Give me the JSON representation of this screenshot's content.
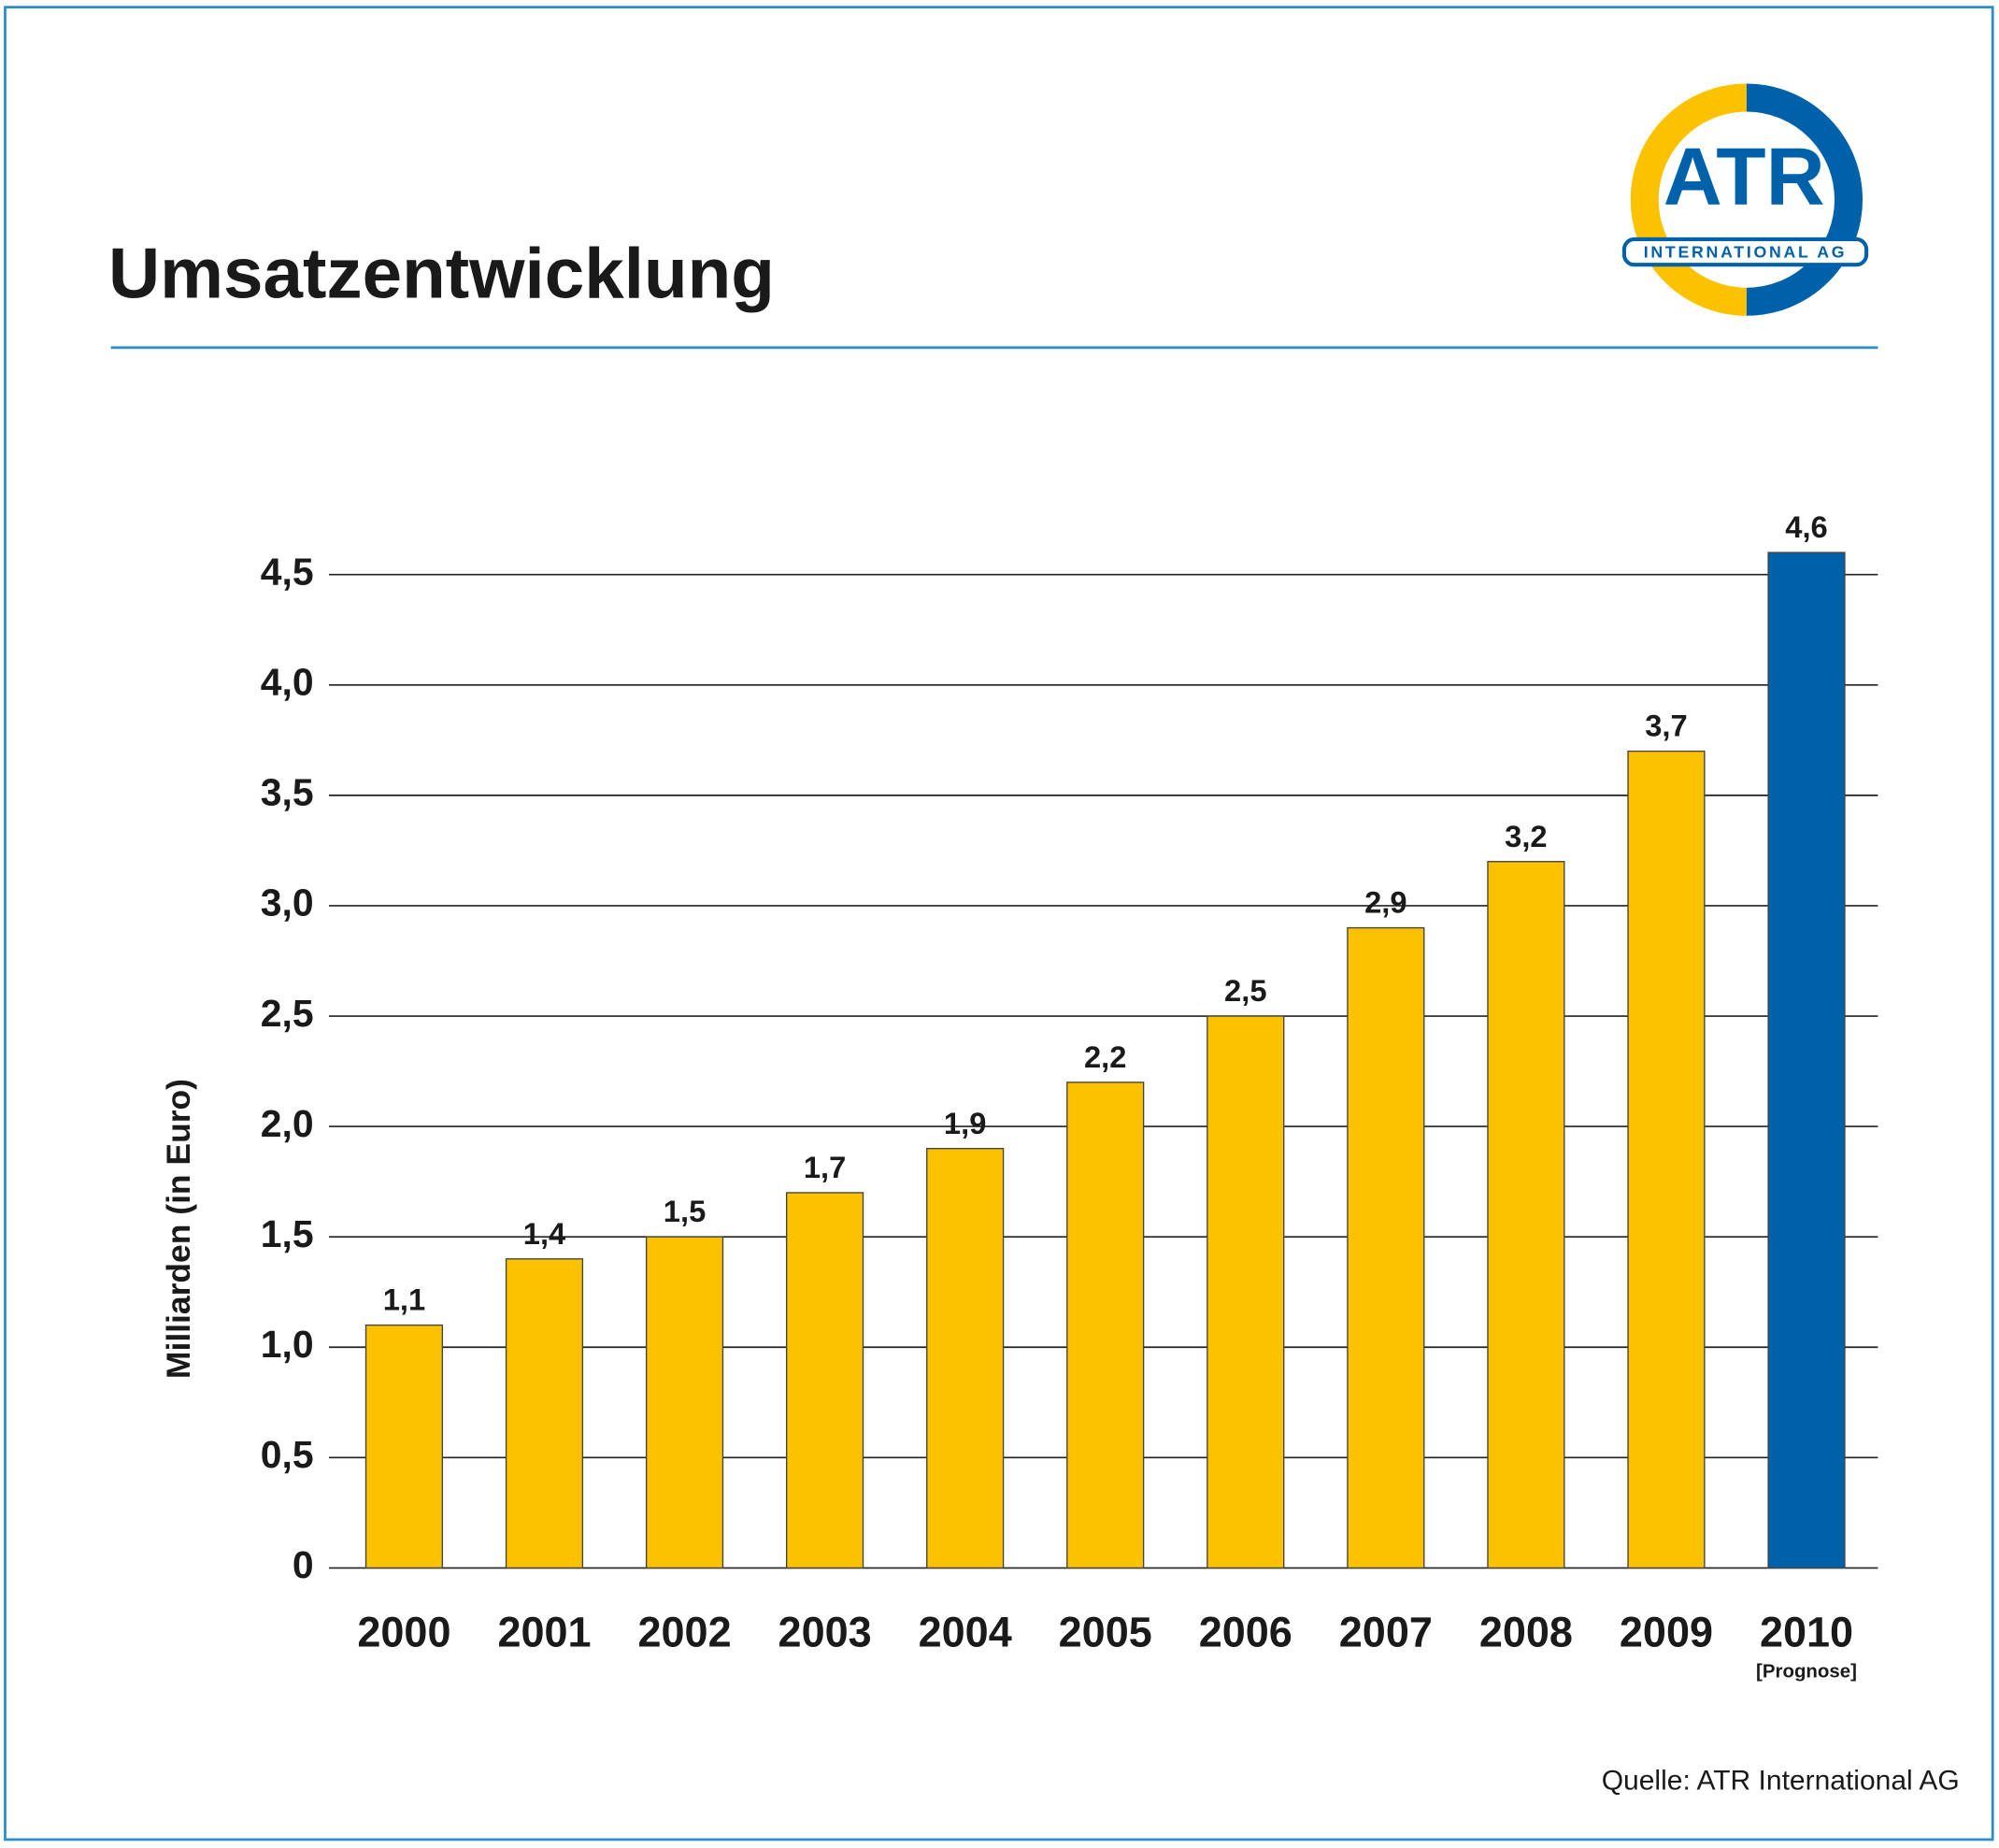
{
  "chart_data": {
    "type": "bar",
    "title": "Umsatzentwicklung",
    "ylabel": "Milliarden (in Euro)",
    "categories": [
      "2000",
      "2001",
      "2002",
      "2003",
      "2004",
      "2005",
      "2006",
      "2007",
      "2008",
      "2009",
      "2010"
    ],
    "category_note": "[Prognose]",
    "values": [
      1.1,
      1.4,
      1.5,
      1.7,
      1.9,
      2.2,
      2.5,
      2.9,
      3.2,
      3.7,
      4.6
    ],
    "value_labels": [
      "1,1",
      "1,4",
      "1,5",
      "1,7",
      "1,9",
      "2,2",
      "2,5",
      "2,9",
      "3,2",
      "3,7",
      "4,6"
    ],
    "colors": [
      "#fcc200",
      "#fcc200",
      "#fcc200",
      "#fcc200",
      "#fcc200",
      "#fcc200",
      "#fcc200",
      "#fcc200",
      "#fcc200",
      "#fcc200",
      "#0061ab"
    ],
    "ylim": [
      0,
      4.5
    ],
    "yticks": [
      0,
      {
        "value": 0.5,
        "label": "0,5"
      },
      {
        "value": 1.0,
        "label": "1,0"
      },
      {
        "value": 1.5,
        "label": "1,5"
      },
      {
        "value": 2.0,
        "label": "2,0"
      },
      {
        "value": 2.5,
        "label": "2,5"
      },
      {
        "value": 3.0,
        "label": "3,0"
      },
      {
        "value": 3.5,
        "label": "3,5"
      },
      {
        "value": 4.0,
        "label": "4,0"
      },
      {
        "value": 4.5,
        "label": "4,5"
      }
    ],
    "grid": true,
    "source": "Quelle: ATR International AG",
    "logo": {
      "name": "ATR",
      "subtitle": "INTERNATIONAL AG"
    }
  }
}
